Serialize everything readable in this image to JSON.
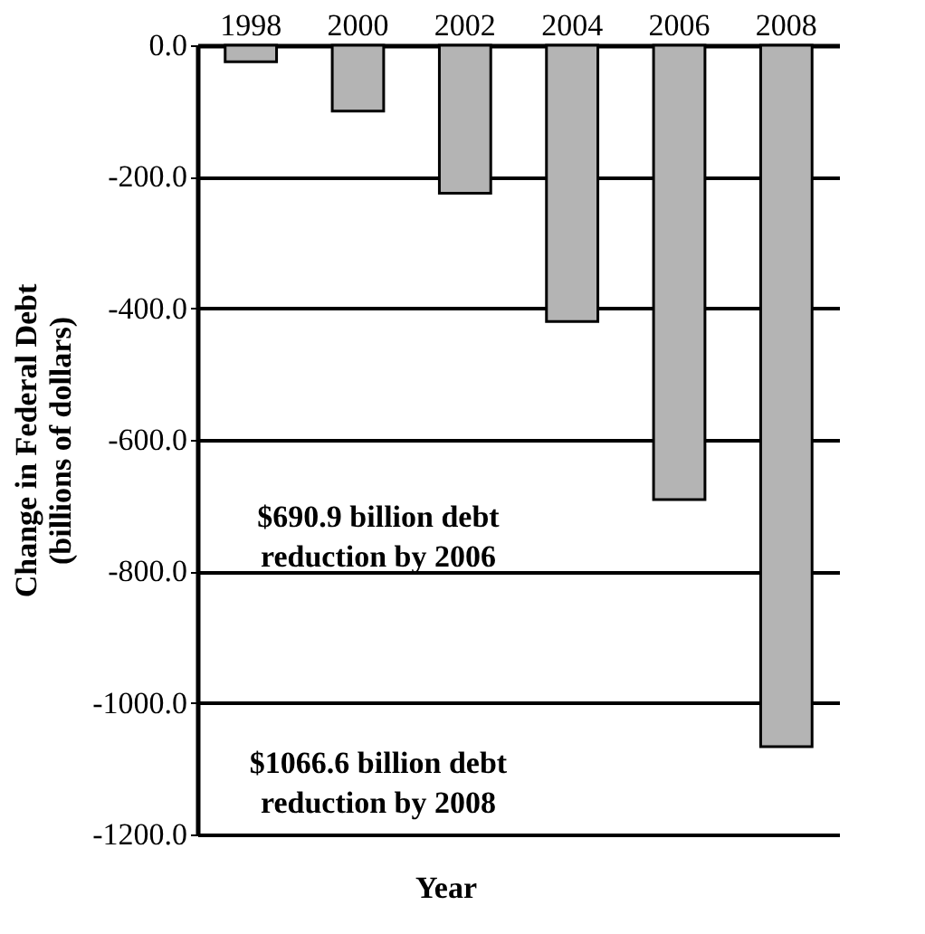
{
  "chart_data": {
    "type": "bar",
    "xlabel": "Year",
    "ylabel": "Change in Federal Debt\n(billions of dollars)",
    "categories": [
      "1998",
      "2000",
      "2002",
      "2004",
      "2006",
      "2008"
    ],
    "values": [
      -25,
      -100,
      -225,
      -420,
      -690.9,
      -1066.6
    ],
    "color": "#b4b4b4",
    "ylim": [
      -1200,
      0
    ],
    "yticks": [
      {
        "value": 0,
        "label": "0.0"
      },
      {
        "value": -200,
        "label": "-200.0"
      },
      {
        "value": -400,
        "label": "-400.0"
      },
      {
        "value": -600,
        "label": "-600.0"
      },
      {
        "value": -800,
        "label": "-800.0"
      },
      {
        "value": -1000,
        "label": "-1000.0"
      },
      {
        "value": -1200,
        "label": "-1200.0"
      }
    ],
    "grid": "y",
    "annotations": [
      "$690.9 billion debt\nreduction by 2006",
      "$1066.6 billion debt\nreduction by 2008"
    ]
  }
}
